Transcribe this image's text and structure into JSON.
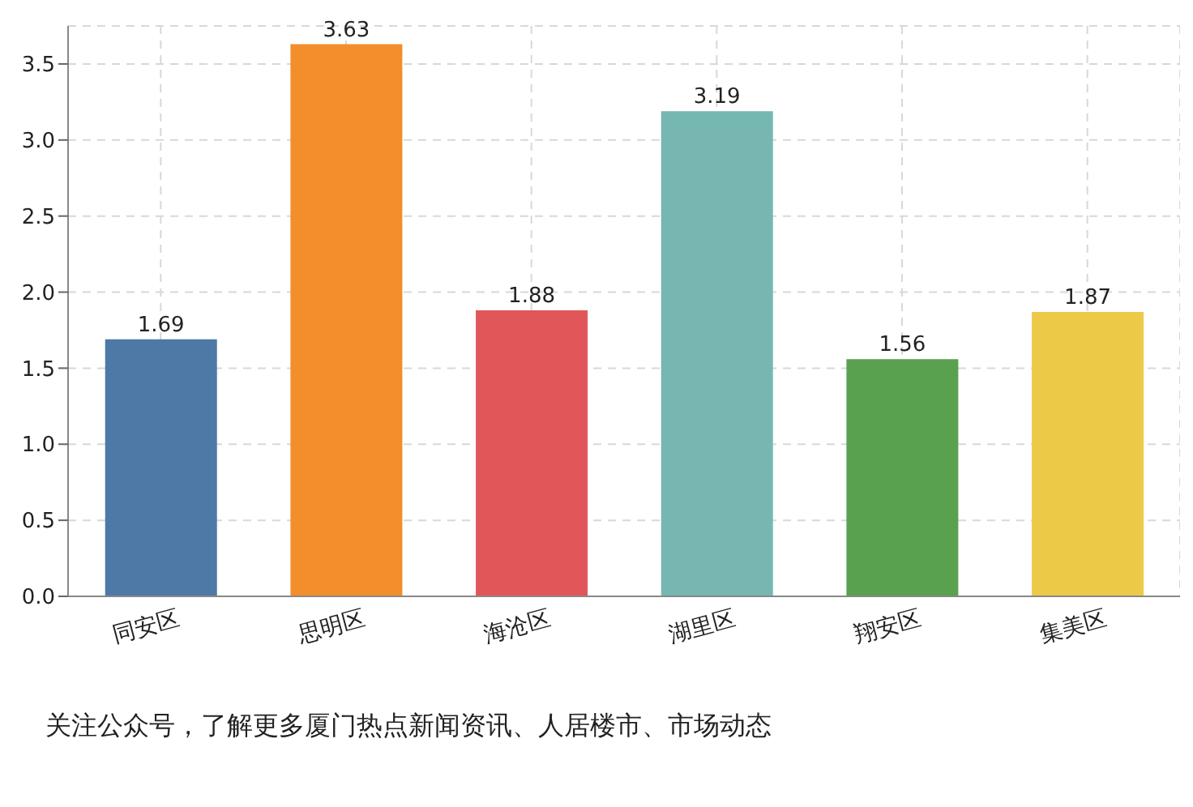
{
  "chart_data": {
    "type": "bar",
    "categories": [
      "同安区",
      "思明区",
      "海沧区",
      "湖里区",
      "翔安区",
      "集美区"
    ],
    "values": [
      1.69,
      3.63,
      1.88,
      3.19,
      1.56,
      1.87
    ],
    "colors": [
      "#4e79a7",
      "#f28e2b",
      "#e15759",
      "#76b7b2",
      "#59a14f",
      "#edc948"
    ],
    "ylim": [
      0,
      3.75
    ],
    "yticks": [
      {
        "value": 0,
        "label": "0.0"
      },
      0.5,
      {
        "value": 1,
        "label": "1.0"
      },
      1.5,
      {
        "value": 2,
        "label": "2.0"
      },
      2.5,
      {
        "value": 3,
        "label": "3.0"
      },
      3.5
    ],
    "grid": true,
    "data_labels": true,
    "annotations": [
      "关注公众号，了解更多厦门热点新闻资讯、人居楼市、市场动态"
    ]
  }
}
